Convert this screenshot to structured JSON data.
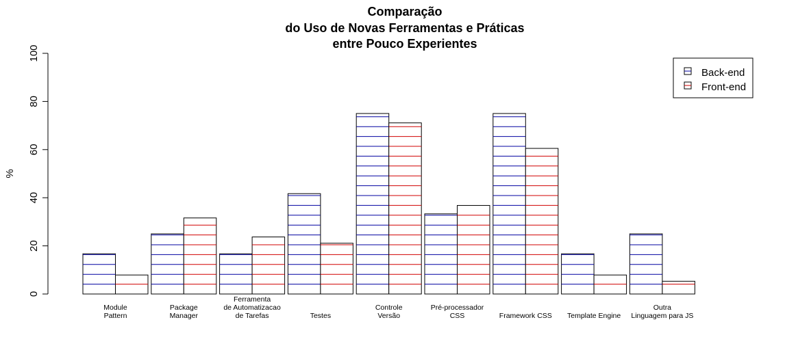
{
  "chart_data": {
    "type": "bar",
    "title": [
      "Comparação",
      "do Uso de Novas Ferramentas e Práticas",
      "entre Pouco Experientes"
    ],
    "xlabel": "",
    "ylabel": "%",
    "ylim": [
      0,
      100
    ],
    "yticks": [
      "0",
      "20",
      "40",
      "60",
      "80",
      "100"
    ],
    "categories": [
      [
        "Module",
        "Pattern"
      ],
      [
        "Package",
        "Manager"
      ],
      [
        "Ferramenta",
        "de Automatizacao",
        "de Tarefas"
      ],
      [
        "Testes"
      ],
      [
        "Controle",
        "Versão"
      ],
      [
        "Pré-processador",
        "CSS"
      ],
      [
        "Framework CSS"
      ],
      [
        "Template Engine"
      ],
      [
        "Outra",
        "Linguagem para JS"
      ]
    ],
    "series": [
      {
        "name": "Back-end",
        "color": "#0000a0",
        "values": [
          16.7,
          25.0,
          16.7,
          41.7,
          75.0,
          33.3,
          75.0,
          16.7,
          25.0
        ]
      },
      {
        "name": "Front-end",
        "color": "#d00000",
        "values": [
          7.9,
          31.6,
          23.7,
          21.1,
          71.1,
          36.8,
          60.5,
          7.9,
          5.3
        ]
      }
    ],
    "legend": {
      "position": "top-right",
      "entries": [
        "Back-end",
        "Front-end"
      ]
    },
    "grid": false
  }
}
